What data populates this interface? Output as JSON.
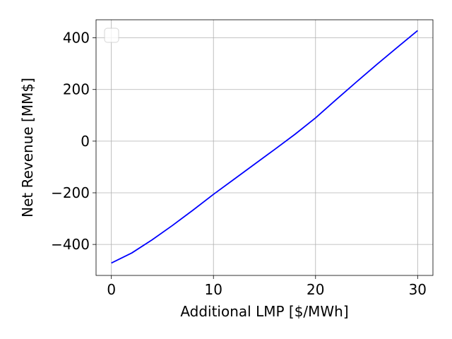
{
  "chart_data": {
    "type": "line",
    "title": "",
    "xlabel": "Additional LMP [$/MWh]",
    "ylabel": "Net Revenue [MM$]",
    "xlim": [
      -1.5,
      31.5
    ],
    "ylim": [
      -520,
      470
    ],
    "xticks": [
      0,
      10,
      20,
      30
    ],
    "yticks": [
      -400,
      -200,
      0,
      200,
      400
    ],
    "xtick_labels": [
      "0",
      "10",
      "20",
      "30"
    ],
    "ytick_labels": [
      "−400",
      "−200",
      "0",
      "200",
      "400"
    ],
    "grid": true,
    "legend": {
      "placement": "top-left",
      "entries": []
    },
    "series": [
      {
        "color": "#0000ff",
        "x": [
          0,
          2,
          4,
          6,
          8,
          10,
          12,
          14,
          16,
          18,
          20,
          22,
          24,
          26,
          28,
          30
        ],
        "y": [
          -472,
          -433,
          -382,
          -326,
          -267,
          -206,
          -148,
          -90,
          -32,
          27,
          90,
          160,
          229,
          297,
          363,
          428
        ]
      }
    ]
  }
}
